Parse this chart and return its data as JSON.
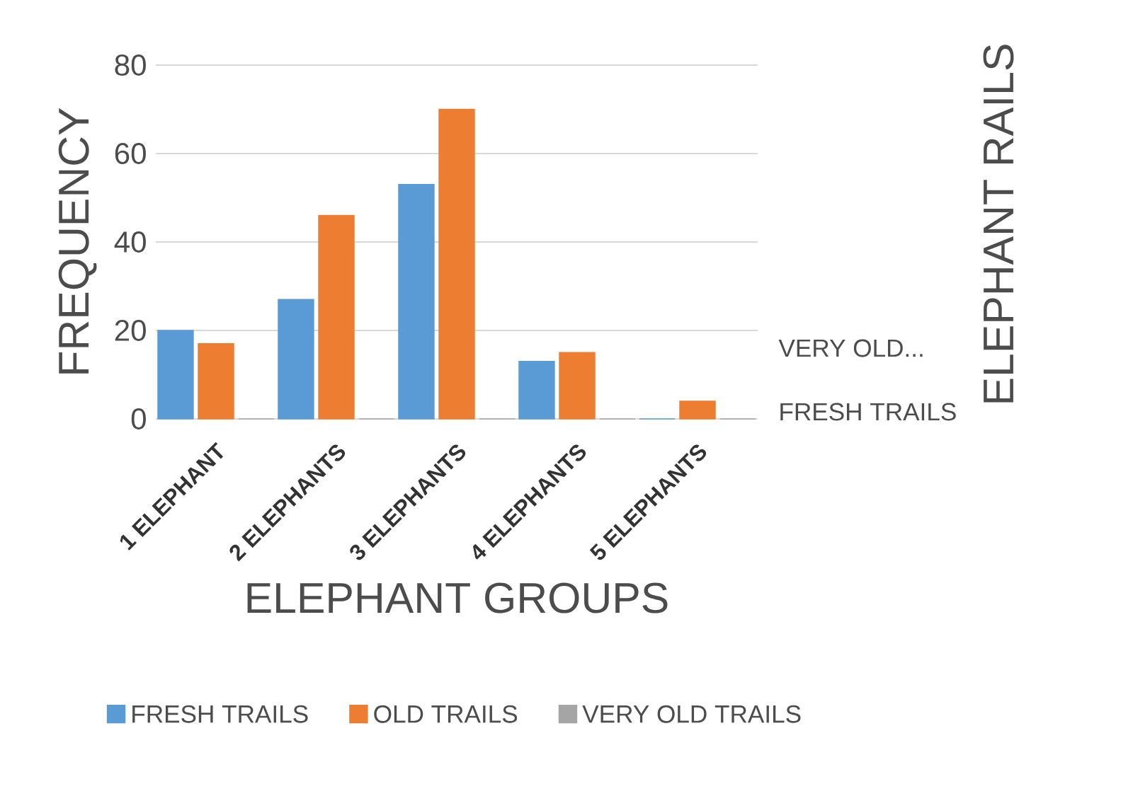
{
  "chart_data": {
    "type": "bar",
    "xlabel": "ELEPHANT GROUPS",
    "ylabel": "FREQUENCY",
    "categories": [
      "1 ELEPHANT",
      "2 ELEPHANTS",
      "3 ELEPHANTS",
      "4 ELEPHANTS",
      "5 ELEPHANTS"
    ],
    "series": [
      {
        "name": "FRESH TRAILS",
        "color": "#5b9bd5",
        "values": [
          20,
          27,
          53,
          13,
          0
        ]
      },
      {
        "name": "OLD TRAILS",
        "color": "#ed7d31",
        "values": [
          17,
          46,
          70,
          15,
          4
        ]
      },
      {
        "name": "VERY OLD TRAILS",
        "color": "#a5a5a5",
        "values": [
          0,
          0,
          0,
          0,
          0
        ]
      }
    ],
    "ylim": [
      0,
      80
    ],
    "yticks": [
      0,
      20,
      40,
      60,
      80
    ],
    "grid": "y",
    "legend": "bottom",
    "annotations": [
      "ELEPHANT RAILS",
      "VERY OLD...",
      "FRESH TRAILS"
    ]
  }
}
